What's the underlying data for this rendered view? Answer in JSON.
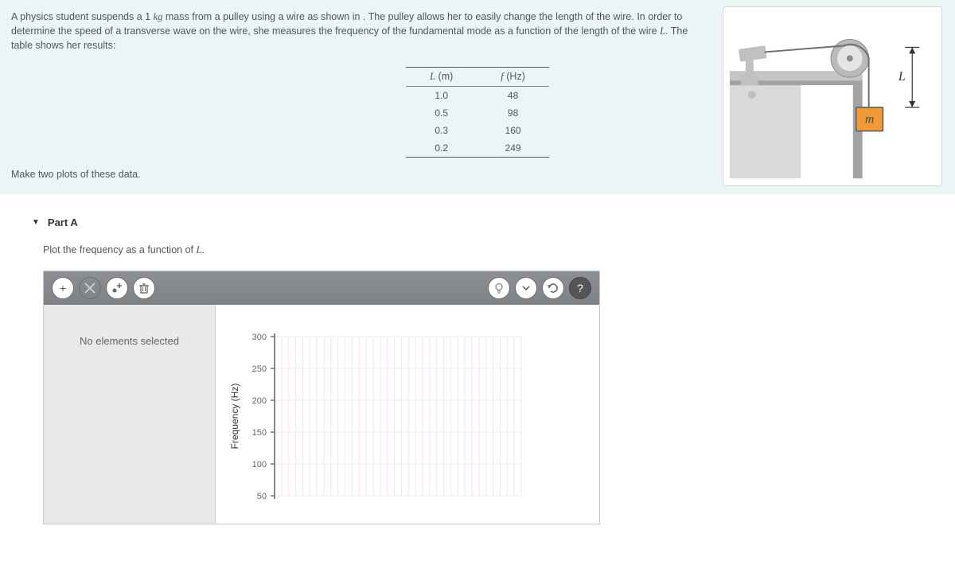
{
  "problem": {
    "text_prefix": "A physics student suspends a 1 ",
    "unit_kg": "kg",
    "text_mid": " mass from a pulley using a wire as shown in . The pulley allows her to easily change the length of the wire. In order to determine the speed of a transverse wave on the wire, she measures the frequency of the fundamental mode as a function of the length of the wire ",
    "var_L": "L",
    "text_suffix": ". The table shows her results:",
    "make_plots": "Make two plots of these data."
  },
  "table": {
    "col1_var": "L",
    "col1_unit": " (m)",
    "col2_var": "f",
    "col2_unit": " (Hz)",
    "rows": [
      {
        "L": "1.0",
        "f": "48"
      },
      {
        "L": "0.5",
        "f": "98"
      },
      {
        "L": "0.3",
        "f": "160"
      },
      {
        "L": "0.2",
        "f": "249"
      }
    ]
  },
  "figure": {
    "mass_label": "m",
    "length_label": "L",
    "colors": {
      "wall": "#d9dadb",
      "table_top": "#c4c5c6",
      "table_edge": "#a2a3a4",
      "clamp": "#bfc0c1",
      "pulley_outer": "#b9babb",
      "pulley_inner": "#e4e5e6",
      "wire": "#707071",
      "mass_fill": "#f29a3a",
      "mass_stroke": "#5a5a5a"
    }
  },
  "part": {
    "title": "Part A",
    "instruction_prefix": "Plot the frequency as a function of ",
    "instruction_var": "L",
    "instruction_suffix": "."
  },
  "graph_tool": {
    "side_text": "No elements selected",
    "y_label": "Frequency (Hz)",
    "y_ticks": [
      "50",
      "100",
      "150",
      "200",
      "250",
      "300"
    ],
    "y_range": [
      50,
      300
    ],
    "x_range": [
      0,
      7
    ],
    "minor_x_per_major": 5,
    "colors": {
      "axis": "#555",
      "major_grid": "#eeeeee",
      "minor_grid": "#f7dada",
      "tick_label": "#666"
    }
  },
  "tools": {
    "add": "+",
    "help": "?"
  }
}
